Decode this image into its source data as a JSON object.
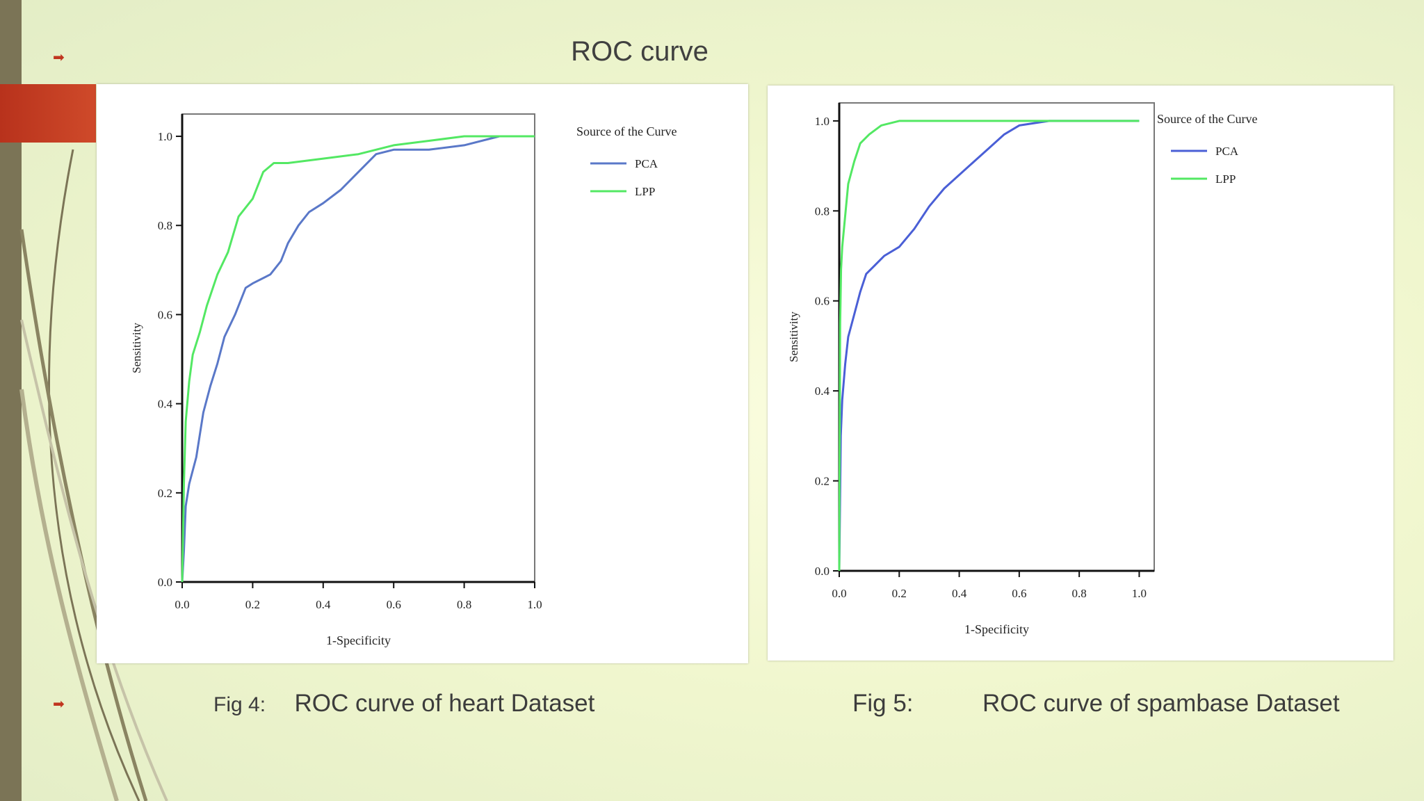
{
  "slide": {
    "title": "ROC curve",
    "captions": [
      {
        "fig": "Fig 4:",
        "text": "ROC curve of heart Dataset"
      },
      {
        "fig": "Fig 5:",
        "text": "ROC curve of spambase Dataset"
      }
    ]
  },
  "colors": {
    "pca": "#5a78c8",
    "lpp": "#53e863",
    "accent": "#c0351f"
  },
  "chart_data": [
    {
      "type": "line",
      "title": "",
      "xlabel": "1-Specificity",
      "ylabel": "Sensitivity",
      "xlim": [
        0,
        1
      ],
      "ylim": [
        0,
        1.05
      ],
      "xticks": [
        "0.0",
        "0.2",
        "0.4",
        "0.6",
        "0.8",
        "1.0"
      ],
      "yticks": [
        "0.0",
        "0.2",
        "0.4",
        "0.6",
        "0.8",
        "1.0"
      ],
      "legend_title": "Source of the Curve",
      "legend_position": "top-right",
      "series": [
        {
          "name": "PCA",
          "color": "#5a78c8",
          "x": [
            0,
            0.005,
            0.01,
            0.02,
            0.04,
            0.06,
            0.08,
            0.1,
            0.12,
            0.15,
            0.18,
            0.2,
            0.25,
            0.28,
            0.3,
            0.33,
            0.36,
            0.4,
            0.45,
            0.5,
            0.55,
            0.6,
            0.7,
            0.8,
            0.9,
            1.0
          ],
          "y": [
            0,
            0.07,
            0.17,
            0.22,
            0.28,
            0.38,
            0.44,
            0.49,
            0.55,
            0.6,
            0.66,
            0.67,
            0.69,
            0.72,
            0.76,
            0.8,
            0.83,
            0.85,
            0.88,
            0.92,
            0.96,
            0.97,
            0.97,
            0.98,
            1.0,
            1.0
          ]
        },
        {
          "name": "LPP",
          "color": "#53e863",
          "x": [
            0,
            0.005,
            0.01,
            0.02,
            0.03,
            0.05,
            0.07,
            0.1,
            0.13,
            0.16,
            0.18,
            0.2,
            0.23,
            0.26,
            0.3,
            0.4,
            0.5,
            0.6,
            0.7,
            0.8,
            0.9,
            1.0
          ],
          "y": [
            0,
            0.22,
            0.36,
            0.45,
            0.51,
            0.56,
            0.62,
            0.69,
            0.74,
            0.82,
            0.84,
            0.86,
            0.92,
            0.94,
            0.94,
            0.95,
            0.96,
            0.98,
            0.99,
            1.0,
            1.0,
            1.0
          ]
        }
      ]
    },
    {
      "type": "line",
      "title": "",
      "xlabel": "1-Specificity",
      "ylabel": "Sensitivity",
      "xlim": [
        0,
        1.05
      ],
      "ylim": [
        0,
        1.04
      ],
      "xticks": [
        "0.0",
        "0.2",
        "0.4",
        "0.6",
        "0.8",
        "1.0"
      ],
      "yticks": [
        "0.0",
        "0.2",
        "0.4",
        "0.6",
        "0.8",
        "1.0"
      ],
      "legend_title": "Source of the Curve",
      "legend_position": "top-right",
      "series": [
        {
          "name": "PCA",
          "color": "#4a5fd6",
          "x": [
            0,
            0.005,
            0.01,
            0.02,
            0.03,
            0.05,
            0.07,
            0.09,
            0.12,
            0.15,
            0.2,
            0.25,
            0.3,
            0.35,
            0.4,
            0.45,
            0.5,
            0.55,
            0.6,
            0.65,
            0.7,
            0.8,
            0.9,
            1.0
          ],
          "y": [
            0,
            0.3,
            0.38,
            0.46,
            0.52,
            0.57,
            0.62,
            0.66,
            0.68,
            0.7,
            0.72,
            0.76,
            0.81,
            0.85,
            0.88,
            0.91,
            0.94,
            0.97,
            0.99,
            0.995,
            1.0,
            1.0,
            1.0,
            1.0
          ]
        },
        {
          "name": "LPP",
          "color": "#53e863",
          "x": [
            0,
            0.003,
            0.006,
            0.01,
            0.02,
            0.03,
            0.05,
            0.07,
            0.1,
            0.14,
            0.2,
            0.3,
            0.5,
            0.7,
            1.0
          ],
          "y": [
            0,
            0.55,
            0.67,
            0.72,
            0.79,
            0.86,
            0.91,
            0.95,
            0.97,
            0.99,
            1.0,
            1.0,
            1.0,
            1.0,
            1.0
          ]
        }
      ]
    }
  ]
}
